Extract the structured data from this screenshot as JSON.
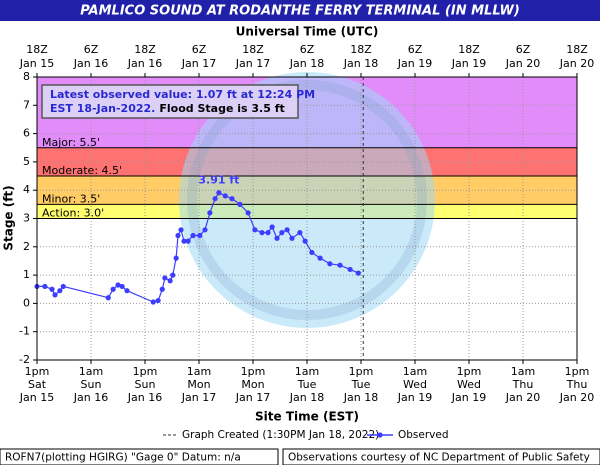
{
  "chart_data": {
    "type": "line",
    "title": "PAMLICO SOUND AT RODANTHE FERRY TERMINAL (IN MLLW)",
    "x2_axis_label": "Universal Time (UTC)",
    "x_axis_label": "Site Time (EST)",
    "y_axis_label": "Stage (ft)",
    "ylim": [
      -2,
      8
    ],
    "yticks": [
      -2,
      -1,
      0,
      1,
      2,
      3,
      4,
      5,
      6,
      7,
      8
    ],
    "xlim": [
      "2022-01-15 13:00",
      "2022-01-20 13:00"
    ],
    "xticks": [
      {
        "value": "2022-01-15 13:00",
        "label": [
          "1pm",
          "Sat",
          "Jan 15"
        ]
      },
      {
        "value": "2022-01-16 01:00",
        "label": [
          "1am",
          "Sun",
          "Jan 16"
        ]
      },
      {
        "value": "2022-01-16 13:00",
        "label": [
          "1pm",
          "Sun",
          "Jan 16"
        ]
      },
      {
        "value": "2022-01-17 01:00",
        "label": [
          "1am",
          "Mon",
          "Jan 17"
        ]
      },
      {
        "value": "2022-01-17 13:00",
        "label": [
          "1pm",
          "Mon",
          "Jan 17"
        ]
      },
      {
        "value": "2022-01-18 01:00",
        "label": [
          "1am",
          "Tue",
          "Jan 18"
        ]
      },
      {
        "value": "2022-01-18 13:00",
        "label": [
          "1pm",
          "Tue",
          "Jan 18"
        ]
      },
      {
        "value": "2022-01-19 01:00",
        "label": [
          "1am",
          "Wed",
          "Jan 19"
        ]
      },
      {
        "value": "2022-01-19 13:00",
        "label": [
          "1pm",
          "Wed",
          "Jan 19"
        ]
      },
      {
        "value": "2022-01-20 01:00",
        "label": [
          "1am",
          "Thu",
          "Jan 20"
        ]
      },
      {
        "value": "2022-01-20 13:00",
        "label": [
          "1pm",
          "Thu",
          "Jan 20"
        ]
      }
    ],
    "x2ticks": [
      {
        "value": "2022-01-15 13:00",
        "label": [
          "18Z",
          "Jan 15"
        ]
      },
      {
        "value": "2022-01-16 01:00",
        "label": [
          "6Z",
          "Jan 16"
        ]
      },
      {
        "value": "2022-01-16 13:00",
        "label": [
          "18Z",
          "Jan 16"
        ]
      },
      {
        "value": "2022-01-17 01:00",
        "label": [
          "6Z",
          "Jan 17"
        ]
      },
      {
        "value": "2022-01-17 13:00",
        "label": [
          "18Z",
          "Jan 17"
        ]
      },
      {
        "value": "2022-01-18 01:00",
        "label": [
          "6Z",
          "Jan 18"
        ]
      },
      {
        "value": "2022-01-18 13:00",
        "label": [
          "18Z",
          "Jan 18"
        ]
      },
      {
        "value": "2022-01-19 01:00",
        "label": [
          "6Z",
          "Jan 19"
        ]
      },
      {
        "value": "2022-01-19 13:00",
        "label": [
          "18Z",
          "Jan 19"
        ]
      },
      {
        "value": "2022-01-20 01:00",
        "label": [
          "6Z",
          "Jan 20"
        ]
      },
      {
        "value": "2022-01-20 13:00",
        "label": [
          "18Z",
          "Jan 20"
        ]
      }
    ],
    "grid": true,
    "flood_stages": [
      {
        "value": 3.0,
        "label": "Action: 3.0'",
        "color": "#ffff70"
      },
      {
        "value": 3.5,
        "label": "Minor: 3.5'",
        "color": "#ffcc66"
      },
      {
        "value": 4.5,
        "label": "Moderate: 4.5'",
        "color": "#ff7272"
      },
      {
        "value": 5.5,
        "label": "Major: 5.5'",
        "color": "#e28cfa"
      }
    ],
    "latest_box": [
      "Latest observed value: 1.07 ft at 12:24 PM",
      "EST 18-Jan-2022.",
      "Flood Stage is 3.5 ft"
    ],
    "peak_label": {
      "x": "2022-01-17 05:25",
      "value": 3.91,
      "label": "3.91 ft"
    },
    "graph_created": {
      "x": "2022-01-18 13:30",
      "label": "Graph Created (1:30PM Jan 18, 2022)"
    },
    "x": [
      "2022-01-15 13:00",
      "2022-01-15 14:45",
      "2022-01-15 16:20",
      "2022-01-15 17:00",
      "2022-01-15 18:05",
      "2022-01-15 18:50",
      "2022-01-16 04:50",
      "2022-01-16 05:55",
      "2022-01-16 07:00",
      "2022-01-16 07:55",
      "2022-01-16 09:00",
      "2022-01-16 14:50",
      "2022-01-16 15:55",
      "2022-01-16 16:50",
      "2022-01-16 17:25",
      "2022-01-16 18:35",
      "2022-01-16 19:10",
      "2022-01-16 19:55",
      "2022-01-16 20:20",
      "2022-01-16 21:00",
      "2022-01-16 21:40",
      "2022-01-16 22:35",
      "2022-01-16 23:40",
      "2022-01-17 01:10",
      "2022-01-17 02:20",
      "2022-01-17 03:25",
      "2022-01-17 04:35",
      "2022-01-17 05:25",
      "2022-01-17 06:50",
      "2022-01-17 08:20",
      "2022-01-17 10:05",
      "2022-01-17 11:55",
      "2022-01-17 13:25",
      "2022-01-17 15:00",
      "2022-01-17 16:20",
      "2022-01-17 17:15",
      "2022-01-17 18:20",
      "2022-01-17 19:25",
      "2022-01-17 20:35",
      "2022-01-17 21:40",
      "2022-01-17 23:25",
      "2022-01-18 00:35",
      "2022-01-18 02:05",
      "2022-01-18 03:55",
      "2022-01-18 06:05",
      "2022-01-18 08:20",
      "2022-01-18 10:35",
      "2022-01-18 12:24"
    ],
    "series": [
      {
        "name": "Observed",
        "color": "#3d3dff",
        "values": [
          0.6,
          0.6,
          0.5,
          0.3,
          0.45,
          0.6,
          0.2,
          0.5,
          0.65,
          0.6,
          0.45,
          0.05,
          0.1,
          0.5,
          0.9,
          0.8,
          1.0,
          1.6,
          2.4,
          2.6,
          2.2,
          2.2,
          2.4,
          2.4,
          2.6,
          3.2,
          3.7,
          3.91,
          3.8,
          3.7,
          3.5,
          3.2,
          2.6,
          2.5,
          2.5,
          2.7,
          2.3,
          2.5,
          2.6,
          2.3,
          2.5,
          2.2,
          1.8,
          1.6,
          1.4,
          1.35,
          1.2,
          1.07
        ]
      }
    ],
    "footer_left": "ROFN7(plotting HGIRG) \"Gage 0\" Datum: n/a",
    "footer_right": "Observations courtesy of NC Department of Public Safety"
  }
}
